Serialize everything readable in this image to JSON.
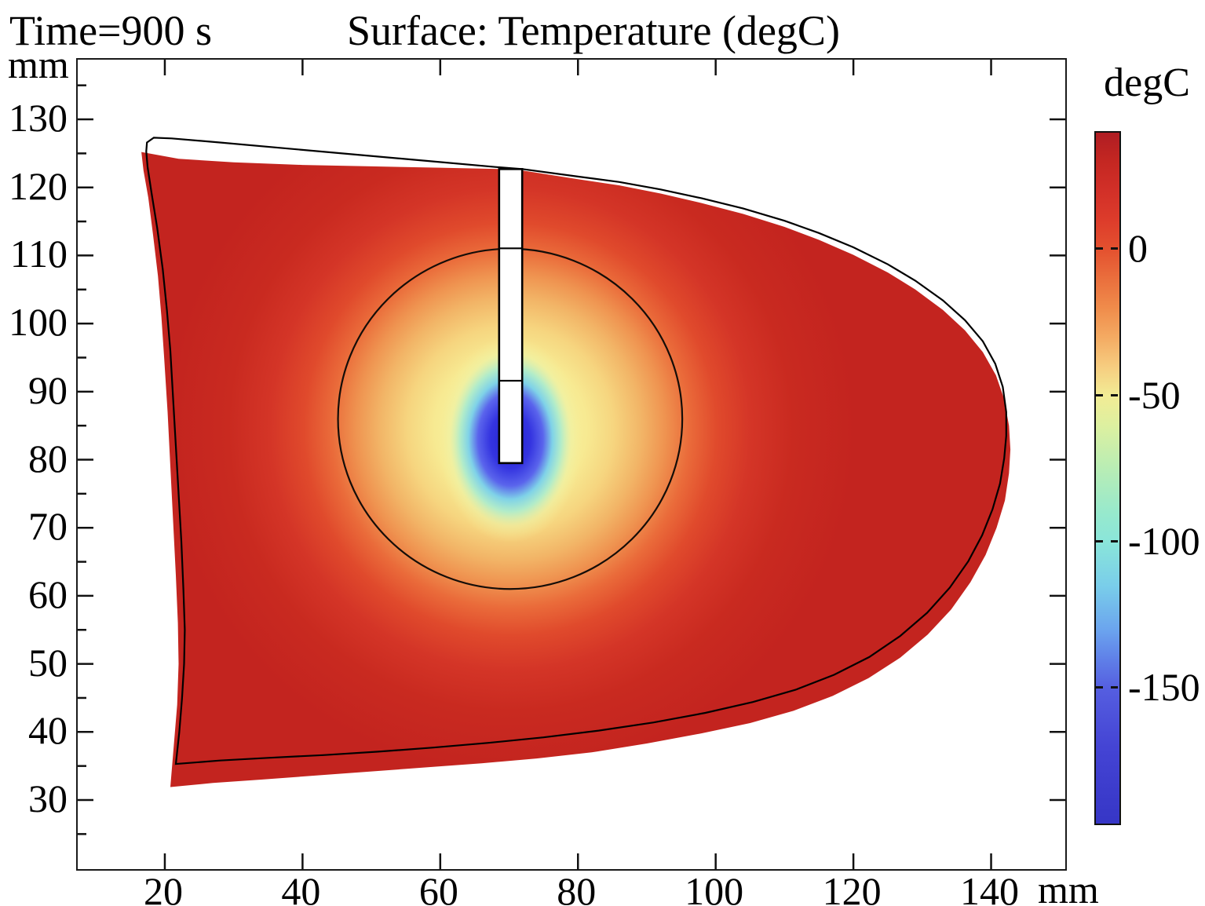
{
  "titles": {
    "time_label": "Time=900 s",
    "plot_title": "Surface: Temperature (degC)"
  },
  "axes": {
    "x_unit": "mm",
    "y_unit": "mm",
    "x_tick_labels": [
      "20",
      "40",
      "60",
      "80",
      "100",
      "120",
      "140"
    ],
    "y_tick_labels": [
      "130",
      "120",
      "110",
      "100",
      "90",
      "80",
      "70",
      "60",
      "50",
      "40",
      "30"
    ]
  },
  "colorbar": {
    "label": "degC",
    "tick_labels": [
      "0",
      "-50",
      "-100",
      "-150"
    ],
    "tick_values": [
      0,
      -50,
      -100,
      -150
    ],
    "vmax": 40,
    "vmin": -196,
    "stops": [
      [
        40,
        "#b01d23"
      ],
      [
        30,
        "#c42722"
      ],
      [
        20,
        "#d23028"
      ],
      [
        10,
        "#dd3c2b"
      ],
      [
        0,
        "#e4512f"
      ],
      [
        -10,
        "#ea6f3d"
      ],
      [
        -20,
        "#f08c4b"
      ],
      [
        -30,
        "#f4ab63"
      ],
      [
        -40,
        "#f6cd80"
      ],
      [
        -50,
        "#f2ec95"
      ],
      [
        -60,
        "#ddf0a0"
      ],
      [
        -75,
        "#b8edb5"
      ],
      [
        -90,
        "#97e9cd"
      ],
      [
        -100,
        "#8ae5da"
      ],
      [
        -115,
        "#79cdea"
      ],
      [
        -130,
        "#6ba4ee"
      ],
      [
        -140,
        "#5f7fe8"
      ],
      [
        -150,
        "#555ee0"
      ],
      [
        -170,
        "#4444d4"
      ],
      [
        -196,
        "#3636c6"
      ]
    ]
  },
  "chart_data": {
    "type": "heatmap",
    "title": "Surface: Temperature (degC)",
    "time_label": "Time=900 s",
    "xlabel": "mm",
    "ylabel": "mm",
    "xlim": [
      7.35,
      150.77
    ],
    "ylim": [
      19.85,
      138.77
    ],
    "x_ticks": [
      20,
      40,
      60,
      80,
      100,
      120,
      140
    ],
    "y_ticks": [
      130,
      120,
      110,
      100,
      90,
      80,
      70,
      60,
      50,
      40,
      30
    ],
    "y_minor_ticks": [
      25,
      35,
      45,
      55,
      65,
      75,
      85,
      95,
      105,
      115,
      125,
      135
    ],
    "colorbar_ticks_degC": [
      0,
      -50,
      -100,
      -150
    ],
    "field": {
      "description": "temperature field: ~37 degC far field (red), cold region around cryoprobe tip reaching ~-190 degC (blue)",
      "warm_center_mm": [
        70.2,
        84.5
      ],
      "warm_radius_mm": 50,
      "warm_stops": [
        [
          0,
          "#f3f1a2"
        ],
        [
          0.14,
          "#f6f09d"
        ],
        [
          0.22,
          "#f7ea92"
        ],
        [
          0.3,
          "#f6d57f"
        ],
        [
          0.38,
          "#f2b567"
        ],
        [
          0.45,
          "#ef9350"
        ],
        [
          0.52,
          "#ea6b3a"
        ],
        [
          0.6,
          "#e04a2c"
        ],
        [
          0.7,
          "#d43527"
        ],
        [
          0.82,
          "#c92a20"
        ],
        [
          1,
          "#c3241f"
        ]
      ],
      "cold_center_mm": [
        70.2,
        83.0
      ],
      "cold_rx_mm": 10.5,
      "cold_ry_mm": 15,
      "cold_stops": [
        [
          0,
          "rgba(34,34,204,1)"
        ],
        [
          0.28,
          "rgba(52,52,224,1)"
        ],
        [
          0.45,
          "rgba(90,100,236,1)"
        ],
        [
          0.58,
          "rgba(127,210,232,1)"
        ],
        [
          0.7,
          "rgba(174,236,204,0.95)"
        ],
        [
          0.84,
          "rgba(235,244,170,0.5)"
        ],
        [
          1,
          "rgba(247,240,155,0)"
        ]
      ]
    },
    "geometry": {
      "deformed_boundary_mm": [
        [
          16.6,
          125.2
        ],
        [
          22,
          124.2
        ],
        [
          30,
          123.7
        ],
        [
          40,
          123.3
        ],
        [
          50,
          123.1
        ],
        [
          60,
          122.9
        ],
        [
          68.5,
          122.7
        ],
        [
          71.9,
          122.5
        ],
        [
          80,
          121.2
        ],
        [
          86,
          120.3
        ],
        [
          92,
          119.1
        ],
        [
          98,
          117.7
        ],
        [
          104,
          116.1
        ],
        [
          110,
          114.2
        ],
        [
          115,
          112.3
        ],
        [
          120,
          110.1
        ],
        [
          125,
          107.5
        ],
        [
          129,
          105.0
        ],
        [
          133,
          102.0
        ],
        [
          136.2,
          99.0
        ],
        [
          138.8,
          95.8
        ],
        [
          140.7,
          92.4
        ],
        [
          141.9,
          88.9
        ],
        [
          142.6,
          85.0
        ],
        [
          142.8,
          81.5
        ],
        [
          142.6,
          78.0
        ],
        [
          142.0,
          74.0
        ],
        [
          140.8,
          70.0
        ],
        [
          139.2,
          66.0
        ],
        [
          137.0,
          62.0
        ],
        [
          134.2,
          58.0
        ],
        [
          130.8,
          54.3
        ],
        [
          126.8,
          50.9
        ],
        [
          122.2,
          47.9
        ],
        [
          117.0,
          45.3
        ],
        [
          111.3,
          43.1
        ],
        [
          105.0,
          41.3
        ],
        [
          98.0,
          39.8
        ],
        [
          90.0,
          38.3
        ],
        [
          82.0,
          37.0
        ],
        [
          74.0,
          36.1
        ],
        [
          66.0,
          35.4
        ],
        [
          58.0,
          34.8
        ],
        [
          50.0,
          34.2
        ],
        [
          42.0,
          33.6
        ],
        [
          34.0,
          33.0
        ],
        [
          27.0,
          32.5
        ],
        [
          20.8,
          31.9
        ],
        [
          21.3,
          38.0
        ],
        [
          21.8,
          44.0
        ],
        [
          22.0,
          50.0
        ],
        [
          21.9,
          56.0
        ],
        [
          21.6,
          63.0
        ],
        [
          21.2,
          71.0
        ],
        [
          20.8,
          79.0
        ],
        [
          20.4,
          87.0
        ],
        [
          19.9,
          95.0
        ],
        [
          19.5,
          101.0
        ],
        [
          19.0,
          107.0
        ],
        [
          18.3,
          113.0
        ],
        [
          17.6,
          118.5
        ],
        [
          16.9,
          122.5
        ]
      ],
      "original_boundary_mm": [
        [
          17.4,
          126.6
        ],
        [
          18.4,
          127.3
        ],
        [
          21,
          127.2
        ],
        [
          28,
          126.6
        ],
        [
          38,
          125.7
        ],
        [
          48,
          124.8
        ],
        [
          58,
          123.9
        ],
        [
          68,
          123.0
        ],
        [
          71.9,
          122.7
        ],
        [
          80,
          121.6
        ],
        [
          86,
          120.8
        ],
        [
          92,
          119.7
        ],
        [
          98,
          118.4
        ],
        [
          104,
          116.9
        ],
        [
          110,
          115.1
        ],
        [
          115,
          113.3
        ],
        [
          120,
          111.2
        ],
        [
          125,
          108.7
        ],
        [
          129,
          106.3
        ],
        [
          133,
          103.4
        ],
        [
          136.2,
          100.5
        ],
        [
          138.8,
          97.4
        ],
        [
          140.6,
          94.1
        ],
        [
          141.7,
          90.7
        ],
        [
          142.2,
          87.0
        ],
        [
          142.2,
          83.5
        ],
        [
          141.9,
          80.2
        ],
        [
          141.3,
          76.5
        ],
        [
          140.2,
          72.7
        ],
        [
          138.7,
          68.9
        ],
        [
          136.7,
          65.1
        ],
        [
          134.0,
          61.2
        ],
        [
          130.7,
          57.5
        ],
        [
          126.8,
          54.1
        ],
        [
          122.3,
          51.0
        ],
        [
          117.2,
          48.4
        ],
        [
          111.6,
          46.2
        ],
        [
          105.4,
          44.4
        ],
        [
          98.5,
          42.8
        ],
        [
          91.0,
          41.4
        ],
        [
          83.0,
          40.2
        ],
        [
          75.0,
          39.2
        ],
        [
          67.0,
          38.4
        ],
        [
          59.0,
          37.7
        ],
        [
          51.0,
          37.1
        ],
        [
          43.0,
          36.6
        ],
        [
          35.0,
          36.2
        ],
        [
          28.0,
          35.8
        ],
        [
          21.6,
          35.3
        ],
        [
          22.1,
          40.0
        ],
        [
          22.5,
          45.0
        ],
        [
          22.8,
          50.0
        ],
        [
          22.9,
          55.0
        ],
        [
          22.7,
          61.0
        ],
        [
          22.4,
          68.0
        ],
        [
          22.0,
          75.0
        ],
        [
          21.6,
          82.0
        ],
        [
          21.2,
          89.0
        ],
        [
          20.8,
          96.0
        ],
        [
          20.3,
          102.0
        ],
        [
          19.7,
          108.0
        ],
        [
          18.9,
          114.0
        ],
        [
          18.1,
          119.0
        ],
        [
          17.5,
          123.0
        ],
        [
          17.3,
          125.3
        ]
      ],
      "iceball_circle_mm": {
        "cx": 70.15,
        "cy": 86.0,
        "r": 25.0
      },
      "probe_mm": {
        "x1": 68.55,
        "x2": 71.9,
        "y_bottom": 79.5,
        "y_top": 122.7,
        "dividers_y": [
          91.6,
          111.05
        ]
      }
    }
  }
}
